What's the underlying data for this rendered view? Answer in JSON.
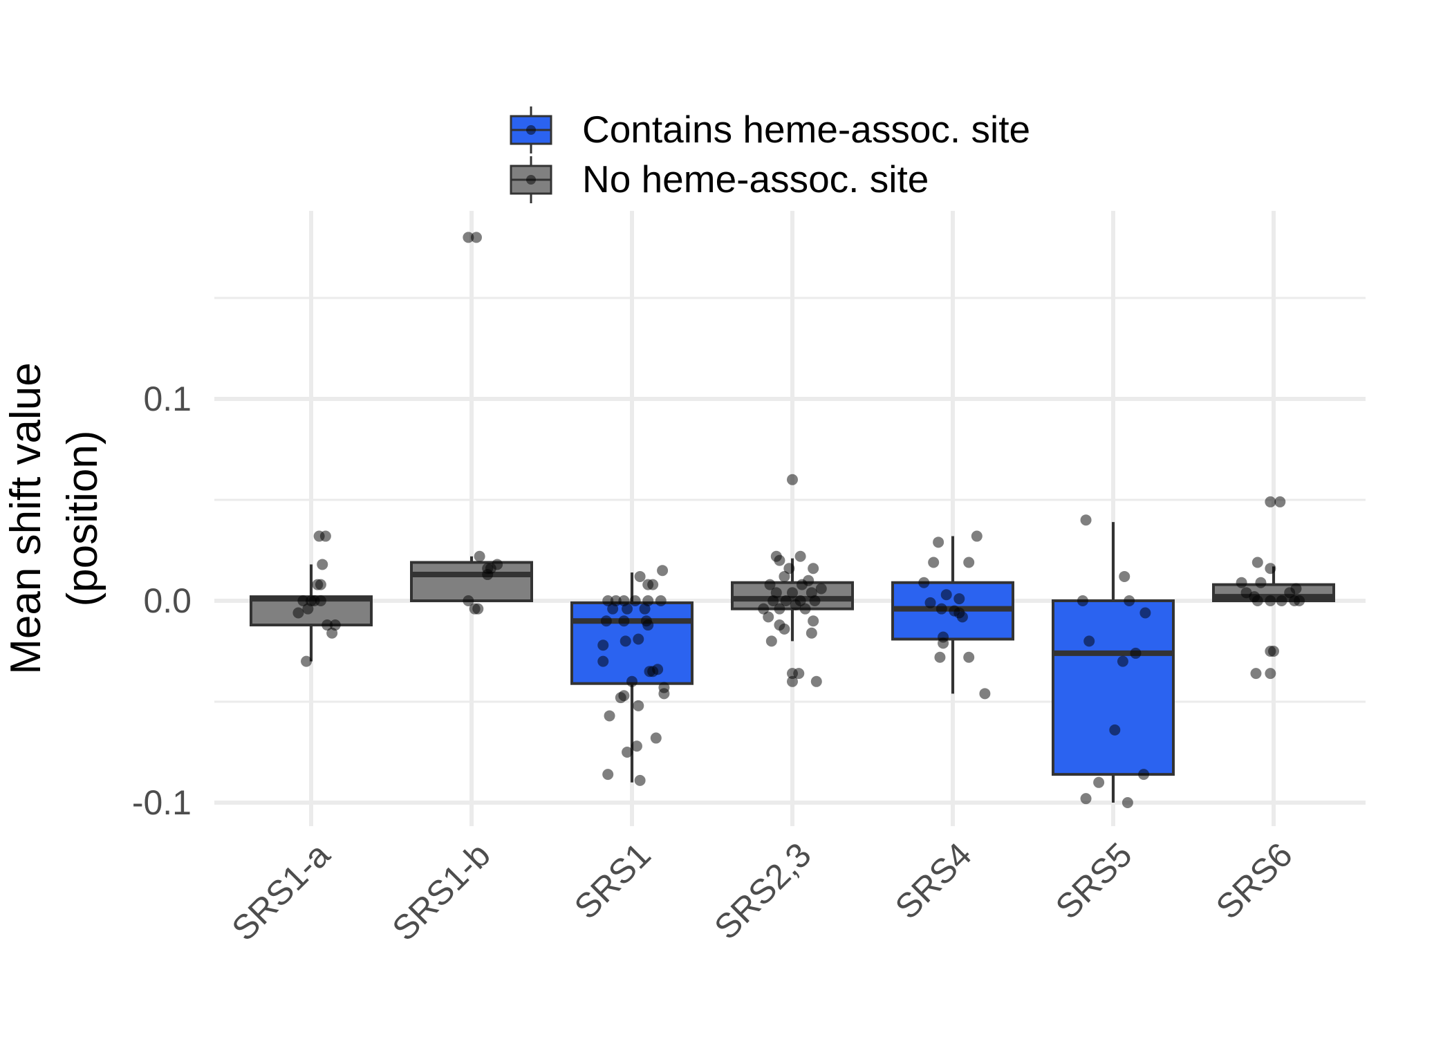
{
  "chart_data": {
    "type": "box",
    "title": "",
    "ylabel": [
      "Mean shift value",
      "(position)"
    ],
    "xlabel": "",
    "ylim": [
      -0.108,
      0.185
    ],
    "yticks": [
      -0.1,
      0.0,
      0.1
    ],
    "ytick_labels": [
      "-0.1",
      "0.0",
      "0.1"
    ],
    "grid": true,
    "legend_position": "top",
    "legend": [
      {
        "label": "Contains heme-assoc. site",
        "color": "#2b63f0"
      },
      {
        "label": "No heme-assoc. site",
        "color": "#808080"
      }
    ],
    "categories": [
      "SRS1-a",
      "SRS1-b",
      "SRS1",
      "SRS2,3",
      "SRS4",
      "SRS5",
      "SRS6"
    ],
    "boxes": [
      {
        "category": "SRS1-a",
        "group": "No heme-assoc. site",
        "color": "#808080",
        "q1": -0.012,
        "median": 0.001,
        "q3": 0.002,
        "whisker_low": -0.03,
        "whisker_high": 0.018,
        "points": [
          [
            -0.03,
            -0.03
          ],
          [
            -0.08,
            -0.006
          ],
          [
            -0.05,
            0.0
          ],
          [
            0.0,
            0.0
          ],
          [
            0.02,
            0.0
          ],
          [
            0.06,
            0.0
          ],
          [
            -0.02,
            -0.004
          ],
          [
            0.06,
            0.008
          ],
          [
            0.04,
            0.008
          ],
          [
            0.07,
            0.018
          ],
          [
            0.1,
            -0.012
          ],
          [
            0.15,
            -0.012
          ],
          [
            0.13,
            -0.016
          ],
          [
            0.05,
            0.032
          ],
          [
            0.09,
            0.032
          ]
        ]
      },
      {
        "category": "SRS1-b",
        "group": "No heme-assoc. site",
        "color": "#808080",
        "q1": 0.0,
        "median": 0.013,
        "q3": 0.019,
        "whisker_low": 0.0,
        "whisker_high": 0.022,
        "points": [
          [
            0.03,
            0.18
          ],
          [
            -0.02,
            0.18
          ],
          [
            -0.02,
            0.0
          ],
          [
            0.02,
            -0.004
          ],
          [
            0.04,
            -0.004
          ],
          [
            0.1,
            0.013
          ],
          [
            0.12,
            0.016
          ],
          [
            0.16,
            0.018
          ],
          [
            0.05,
            0.022
          ],
          [
            0.1,
            0.016
          ]
        ]
      },
      {
        "category": "SRS1",
        "group": "Contains heme-assoc. site",
        "color": "#2b63f0",
        "q1": -0.041,
        "median": -0.01,
        "q3": -0.001,
        "whisker_low": -0.09,
        "whisker_high": 0.014,
        "points": [
          [
            -0.15,
            0.0
          ],
          [
            -0.1,
            0.0
          ],
          [
            -0.05,
            0.0
          ],
          [
            0.02,
            0.0
          ],
          [
            0.1,
            0.0
          ],
          [
            0.18,
            0.0
          ],
          [
            -0.12,
            -0.004
          ],
          [
            -0.03,
            -0.004
          ],
          [
            0.08,
            -0.004
          ],
          [
            -0.16,
            -0.01
          ],
          [
            -0.05,
            -0.01
          ],
          [
            0.09,
            -0.01
          ],
          [
            0.1,
            -0.012
          ],
          [
            -0.18,
            -0.022
          ],
          [
            -0.04,
            -0.02
          ],
          [
            0.04,
            -0.019
          ],
          [
            -0.18,
            -0.03
          ],
          [
            0.13,
            -0.035
          ],
          [
            0.16,
            -0.034
          ],
          [
            0.11,
            -0.035
          ],
          [
            0.0,
            -0.04
          ],
          [
            0.2,
            -0.043
          ],
          [
            0.2,
            -0.046
          ],
          [
            -0.07,
            -0.048
          ],
          [
            -0.05,
            -0.047
          ],
          [
            0.04,
            -0.052
          ],
          [
            -0.14,
            -0.057
          ],
          [
            0.15,
            -0.068
          ],
          [
            0.03,
            -0.072
          ],
          [
            -0.03,
            -0.075
          ],
          [
            -0.15,
            -0.086
          ],
          [
            0.05,
            -0.089
          ],
          [
            0.1,
            0.008
          ],
          [
            0.13,
            0.008
          ],
          [
            0.19,
            0.015
          ],
          [
            0.05,
            0.012
          ]
        ]
      },
      {
        "category": "SRS2,3",
        "group": "No heme-assoc. site",
        "color": "#808080",
        "q1": -0.004,
        "median": 0.001,
        "q3": 0.009,
        "whisker_low": -0.02,
        "whisker_high": 0.021,
        "points": [
          [
            0.0,
            0.06
          ],
          [
            -0.1,
            0.022
          ],
          [
            0.05,
            0.022
          ],
          [
            -0.08,
            0.02
          ],
          [
            -0.02,
            0.016
          ],
          [
            0.13,
            0.016
          ],
          [
            -0.05,
            0.012
          ],
          [
            0.1,
            0.01
          ],
          [
            -0.14,
            0.008
          ],
          [
            0.06,
            0.008
          ],
          [
            -0.1,
            0.004
          ],
          [
            0.0,
            0.004
          ],
          [
            0.12,
            0.004
          ],
          [
            -0.12,
            0.0
          ],
          [
            -0.04,
            0.0
          ],
          [
            0.05,
            0.0
          ],
          [
            0.14,
            0.0
          ],
          [
            -0.18,
            -0.004
          ],
          [
            -0.08,
            -0.004
          ],
          [
            0.08,
            -0.004
          ],
          [
            -0.15,
            -0.008
          ],
          [
            0.13,
            -0.01
          ],
          [
            -0.08,
            -0.012
          ],
          [
            -0.05,
            -0.014
          ],
          [
            0.12,
            -0.016
          ],
          [
            -0.13,
            -0.02
          ],
          [
            0.0,
            -0.036
          ],
          [
            0.04,
            -0.036
          ],
          [
            0.0,
            -0.04
          ],
          [
            0.15,
            -0.04
          ],
          [
            0.02,
            -0.002
          ],
          [
            0.18,
            0.006
          ]
        ]
      },
      {
        "category": "SRS4",
        "group": "Contains heme-assoc. site",
        "color": "#2b63f0",
        "q1": -0.019,
        "median": -0.004,
        "q3": 0.009,
        "whisker_low": -0.046,
        "whisker_high": 0.032,
        "points": [
          [
            -0.09,
            0.029
          ],
          [
            0.15,
            0.032
          ],
          [
            -0.12,
            0.019
          ],
          [
            0.1,
            0.019
          ],
          [
            -0.18,
            0.009
          ],
          [
            -0.04,
            0.003
          ],
          [
            0.04,
            0.001
          ],
          [
            -0.14,
            -0.001
          ],
          [
            -0.07,
            -0.004
          ],
          [
            0.01,
            -0.005
          ],
          [
            0.04,
            -0.006
          ],
          [
            0.06,
            -0.008
          ],
          [
            -0.06,
            -0.018
          ],
          [
            -0.06,
            -0.021
          ],
          [
            -0.08,
            -0.028
          ],
          [
            0.1,
            -0.028
          ],
          [
            0.2,
            -0.046
          ]
        ]
      },
      {
        "category": "SRS5",
        "group": "Contains heme-assoc. site",
        "color": "#2b63f0",
        "q1": -0.086,
        "median": -0.026,
        "q3": 0.0,
        "whisker_low": -0.1,
        "whisker_high": 0.039,
        "points": [
          [
            -0.17,
            0.04
          ],
          [
            0.07,
            0.012
          ],
          [
            -0.19,
            0.0
          ],
          [
            0.1,
            0.0
          ],
          [
            0.2,
            -0.006
          ],
          [
            -0.15,
            -0.02
          ],
          [
            0.14,
            -0.026
          ],
          [
            0.06,
            -0.03
          ],
          [
            0.01,
            -0.064
          ],
          [
            0.19,
            -0.086
          ],
          [
            -0.09,
            -0.09
          ],
          [
            -0.17,
            -0.098
          ],
          [
            0.09,
            -0.1
          ]
        ]
      },
      {
        "category": "SRS6",
        "group": "No heme-assoc. site",
        "color": "#808080",
        "q1": 0.0,
        "median": 0.002,
        "q3": 0.008,
        "whisker_low": 0.0,
        "whisker_high": 0.017,
        "points": [
          [
            -0.02,
            0.049
          ],
          [
            0.04,
            0.049
          ],
          [
            -0.1,
            0.019
          ],
          [
            -0.02,
            0.016
          ],
          [
            -0.2,
            0.009
          ],
          [
            -0.08,
            0.009
          ],
          [
            -0.17,
            0.004
          ],
          [
            -0.12,
            0.002
          ],
          [
            0.1,
            0.004
          ],
          [
            0.14,
            0.006
          ],
          [
            -0.1,
            0.0
          ],
          [
            -0.02,
            0.0
          ],
          [
            0.05,
            0.0
          ],
          [
            0.13,
            0.0
          ],
          [
            0.16,
            0.0
          ],
          [
            -0.02,
            -0.025
          ],
          [
            0.0,
            -0.025
          ],
          [
            -0.11,
            -0.036
          ],
          [
            -0.02,
            -0.036
          ]
        ]
      }
    ]
  }
}
